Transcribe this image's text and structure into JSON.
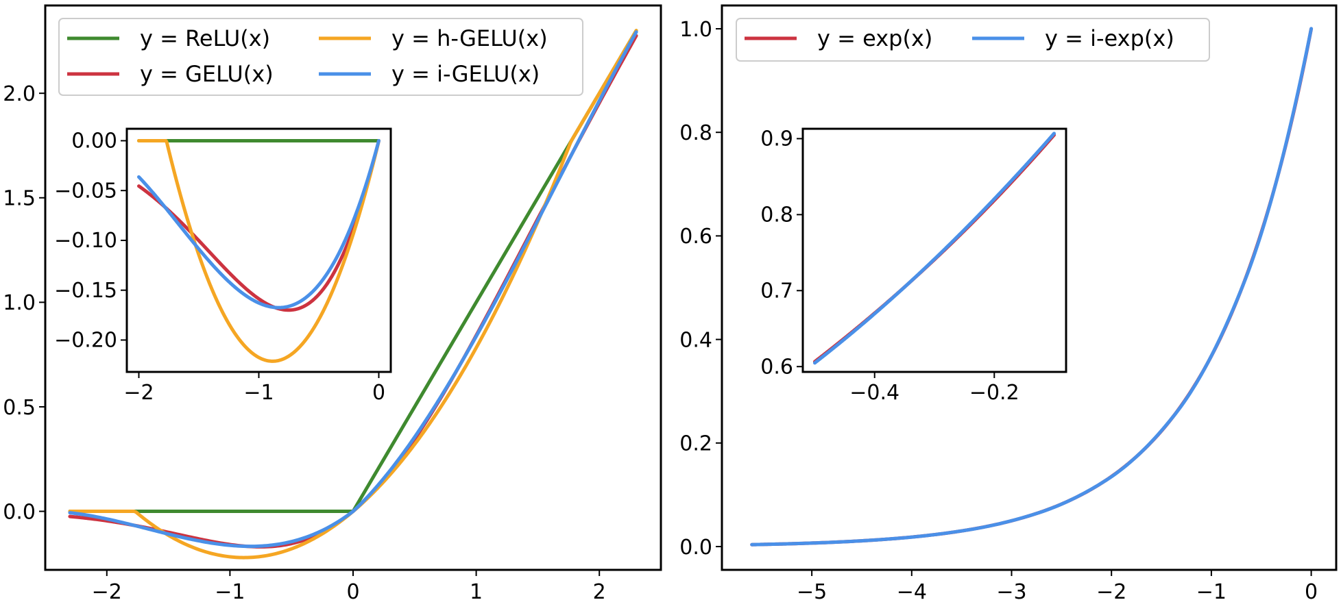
{
  "colors": {
    "relu": "#3f8a2f",
    "gelu": "#cc3340",
    "hgelu": "#f5a623",
    "igelu": "#4a90e8",
    "exp": "#cc3340",
    "iexp": "#4a90e8"
  },
  "chart_data": [
    {
      "id": "gelu-main",
      "type": "line",
      "title": "",
      "xlabel": "",
      "ylabel": "",
      "xlim": [
        -2.5,
        2.5
      ],
      "ylim": [
        -0.28,
        2.42
      ],
      "xticks": [
        -2,
        -1,
        0,
        1,
        2
      ],
      "xtick_labels": [
        "−2",
        "−1",
        "0",
        "1",
        "2"
      ],
      "yticks": [
        0.0,
        0.5,
        1.0,
        1.5,
        2.0
      ],
      "ytick_labels": [
        "0.0",
        "0.5",
        "1.0",
        "1.5",
        "2.0"
      ],
      "x_range": [
        -2.3,
        2.3
      ],
      "legend_position": "upper-left",
      "legend_columns": 2,
      "series": [
        {
          "key": "relu",
          "name": "y = ReLU(x)",
          "color_key": "relu"
        },
        {
          "key": "gelu",
          "name": "y = GELU(x)",
          "color_key": "gelu"
        },
        {
          "key": "hgelu",
          "name": "y = h-GELU(x)",
          "color_key": "hgelu"
        },
        {
          "key": "igelu",
          "name": "y = i-GELU(x)",
          "color_key": "igelu"
        }
      ]
    },
    {
      "id": "gelu-inset",
      "type": "line",
      "title": "",
      "xlim": [
        -2.1,
        0.1
      ],
      "ylim": [
        -0.232,
        0.012
      ],
      "xticks": [
        -2,
        -1,
        0
      ],
      "xtick_labels": [
        "−2",
        "−1",
        "0"
      ],
      "yticks": [
        0.0,
        -0.05,
        -0.1,
        -0.15,
        -0.2
      ],
      "ytick_labels": [
        "0.00",
        "−0.05",
        "−0.10",
        "−0.15",
        "−0.20"
      ],
      "x_range": [
        -2.0,
        0.0
      ],
      "series_keys": [
        "relu",
        "gelu",
        "hgelu",
        "igelu"
      ]
    },
    {
      "id": "exp-main",
      "type": "line",
      "title": "",
      "xlabel": "",
      "ylabel": "",
      "xlim": [
        -5.9,
        0.25
      ],
      "ylim": [
        -0.045,
        1.045
      ],
      "xticks": [
        -5,
        -4,
        -3,
        -2,
        -1,
        0
      ],
      "xtick_labels": [
        "−5",
        "−4",
        "−3",
        "−2",
        "−1",
        "0"
      ],
      "yticks": [
        0.0,
        0.2,
        0.4,
        0.6,
        0.8,
        1.0
      ],
      "ytick_labels": [
        "0.0",
        "0.2",
        "0.4",
        "0.6",
        "0.8",
        "1.0"
      ],
      "x_range": [
        -5.6,
        0.0
      ],
      "legend_position": "upper-left",
      "legend_columns": 2,
      "series": [
        {
          "key": "exp",
          "name": "y = exp(x)",
          "color_key": "exp"
        },
        {
          "key": "iexp",
          "name": "y = i-exp(x)",
          "color_key": "iexp"
        }
      ]
    },
    {
      "id": "exp-inset",
      "type": "line",
      "title": "",
      "xlim": [
        -0.52,
        -0.08
      ],
      "ylim": [
        0.593,
        0.913
      ],
      "xticks": [
        -0.4,
        -0.2
      ],
      "xtick_labels": [
        "−0.4",
        "−0.2"
      ],
      "yticks": [
        0.6,
        0.7,
        0.8,
        0.9
      ],
      "ytick_labels": [
        "0.6",
        "0.7",
        "0.8",
        "0.9"
      ],
      "x_range": [
        -0.5,
        -0.1
      ],
      "series_keys": [
        "exp",
        "iexp"
      ]
    }
  ]
}
